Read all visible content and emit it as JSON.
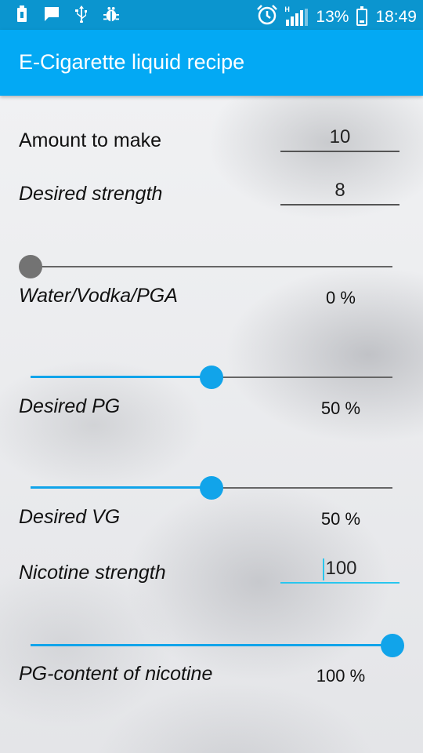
{
  "status_bar": {
    "icons_left": [
      "usb-storage-icon",
      "message-icon",
      "usb-icon",
      "debug-bug-icon"
    ],
    "alarm_icon": "alarm-clock-icon",
    "signal_label": "H",
    "battery_percent": "13%",
    "time": "18:49"
  },
  "app_bar": {
    "title": "E-Cigarette liquid recipe"
  },
  "form": {
    "amount": {
      "label": "Amount to make",
      "value": "10"
    },
    "strength": {
      "label": "Desired strength",
      "value": "8"
    },
    "water": {
      "label": "Water/Vodka/PGA",
      "percent": "0 %",
      "slider_value": 0
    },
    "pg": {
      "label": "Desired PG",
      "percent": "50 %",
      "slider_value": 50
    },
    "vg": {
      "label": "Desired VG",
      "percent": "50 %",
      "slider_value": 50
    },
    "nicotine": {
      "label": "Nicotine strength",
      "value": "100"
    },
    "pg_nicotine": {
      "label": "PG-content of nicotine",
      "percent": "100 %",
      "slider_value": 100
    }
  },
  "colors": {
    "status_bar": "#0b95cf",
    "app_bar": "#03a9f4",
    "accent": "#11a4ea",
    "cursor": "#29c6ee"
  }
}
